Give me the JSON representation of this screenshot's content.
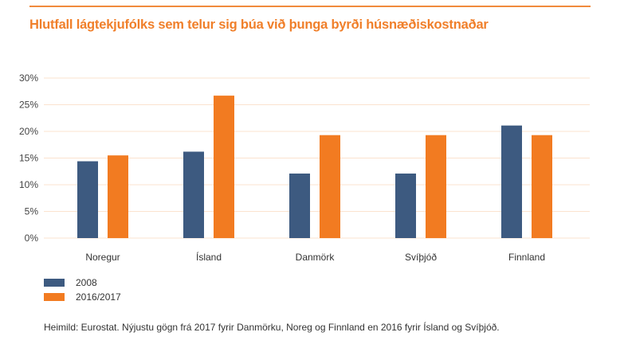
{
  "chart_data": {
    "type": "bar",
    "title": "Hlutfall lágtekjufólks sem telur sig búa við þunga byrði húsnæðiskostnaðar",
    "categories": [
      "Noregur",
      "Ísland",
      "Danmörk",
      "Svíþjóð",
      "Finnland"
    ],
    "series": [
      {
        "name": "2008",
        "color": "#3d5a80",
        "values": [
          14.4,
          16.2,
          12.1,
          12.1,
          21.1
        ]
      },
      {
        "name": "2016/2017",
        "color": "#f27b21",
        "values": [
          15.5,
          26.7,
          19.3,
          19.3,
          19.3
        ]
      }
    ],
    "yticks": [
      "0%",
      "5%",
      "10%",
      "15%",
      "20%",
      "25%",
      "30%"
    ],
    "ylim": [
      0,
      30
    ],
    "xlabel": "",
    "ylabel": "",
    "grid": true,
    "legend": "bottom-left"
  },
  "source": "Heimild: Eurostat. Nýjustu gögn frá 2017 fyrir Danmörku, Noreg og Finnland en 2016 fyrir Ísland og Svíþjóð."
}
